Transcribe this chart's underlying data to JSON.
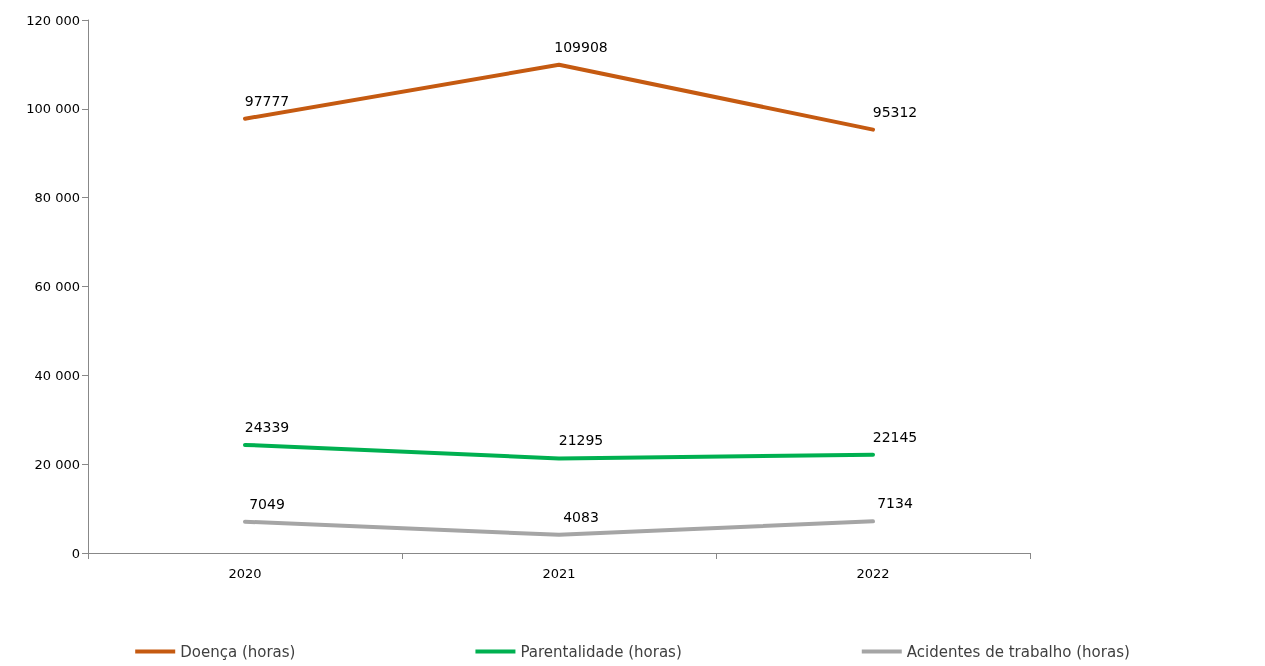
{
  "chart_data": {
    "type": "line",
    "categories": [
      "2020",
      "2021",
      "2022"
    ],
    "series": [
      {
        "name": "Doença (horas)",
        "color": "#c55a11",
        "values": [
          97777,
          109908,
          95312
        ]
      },
      {
        "name": "Parentalidade (horas)",
        "color": "#00b050",
        "values": [
          24339,
          21295,
          22145
        ]
      },
      {
        "name": "Acidentes de trabalho (horas)",
        "color": "#a5a5a5",
        "values": [
          7049,
          4083,
          7134
        ]
      }
    ],
    "ylim": [
      0,
      120000
    ],
    "yticks": [
      0,
      {
        "value": 20000,
        "label": "20 000"
      },
      {
        "value": 40000,
        "label": "40 000"
      },
      {
        "value": 60000,
        "label": "60 000"
      },
      {
        "value": 80000,
        "label": "80 000"
      },
      {
        "value": 100000,
        "label": "100 000"
      },
      {
        "value": 120000,
        "label": "120 000"
      }
    ],
    "data_labels": true,
    "grid": false,
    "legend": "bottom",
    "marker": "none",
    "line_style": "solid"
  }
}
